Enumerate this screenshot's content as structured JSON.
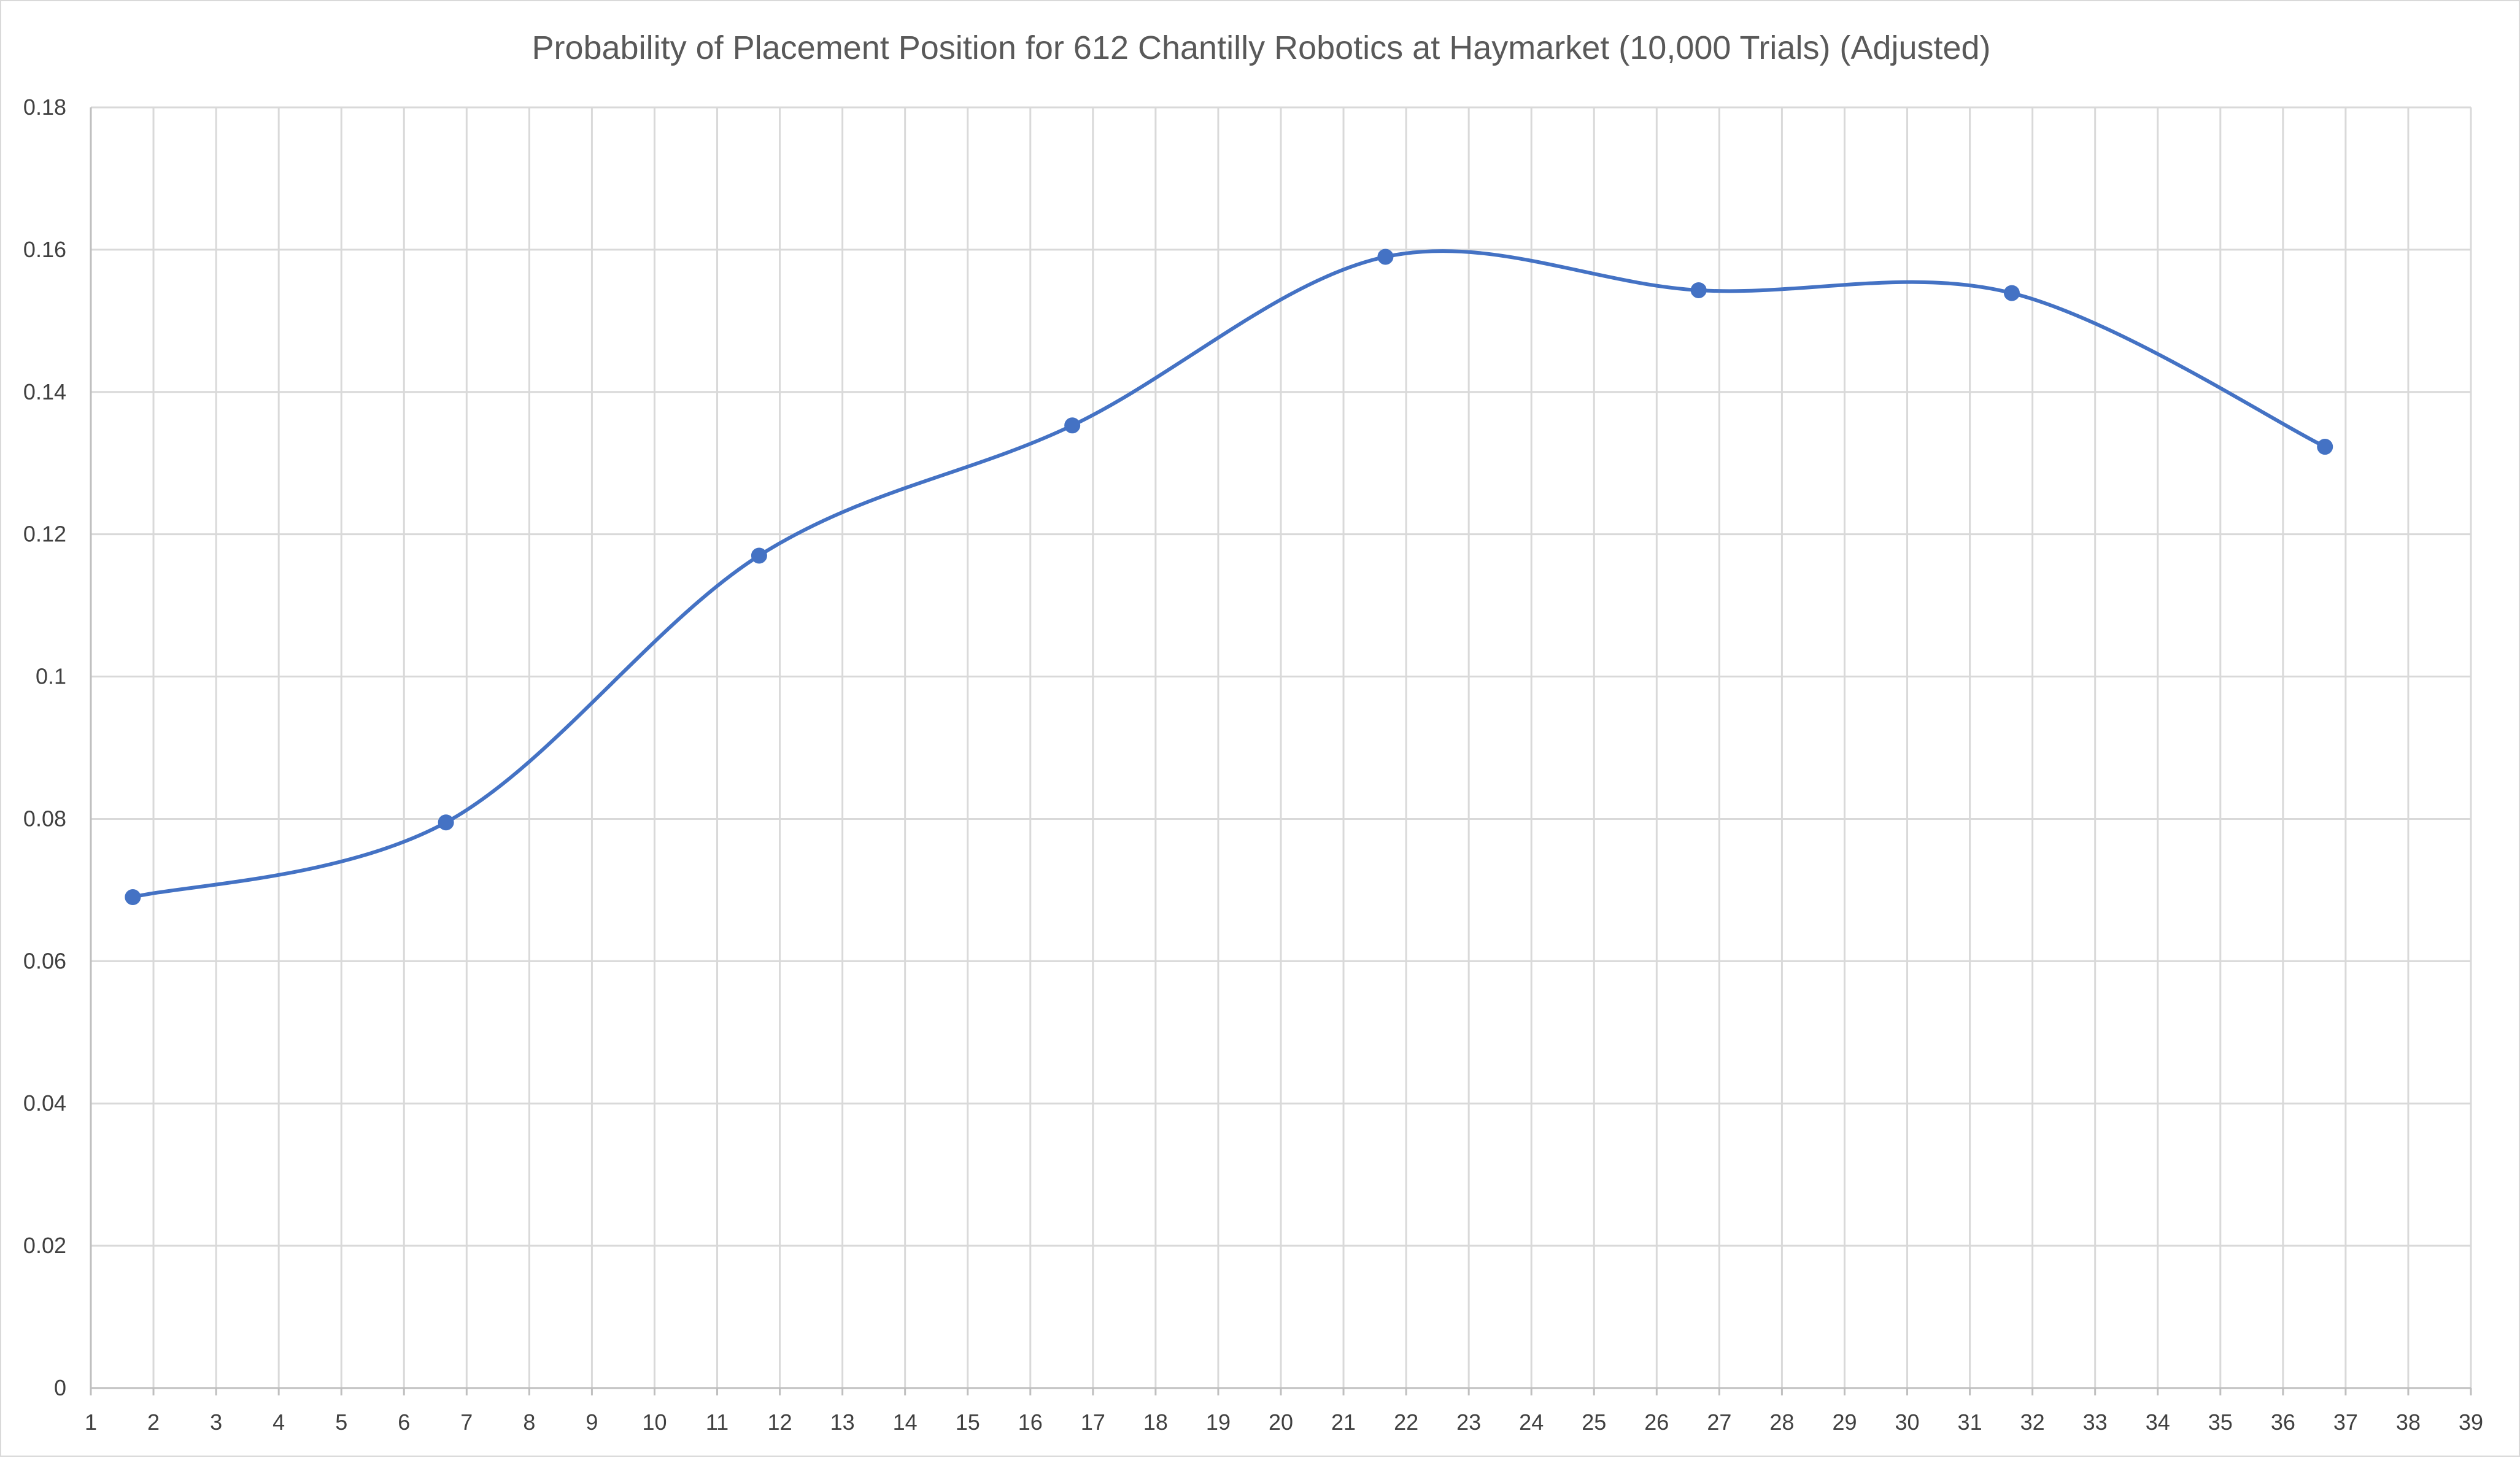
{
  "chart_data": {
    "type": "line",
    "title": "Probability of Placement Position for 612 Chantilly Robotics at Haymarket (10,000 Trials) (Adjusted)",
    "xlabel": "",
    "ylabel": "",
    "x_ticks": [
      "1",
      "2",
      "3",
      "4",
      "5",
      "6",
      "7",
      "8",
      "9",
      "10",
      "11",
      "12",
      "13",
      "14",
      "15",
      "16",
      "17",
      "18",
      "19",
      "20",
      "21",
      "22",
      "23",
      "24",
      "25",
      "26",
      "27",
      "28",
      "29",
      "30",
      "31",
      "32",
      "33",
      "34",
      "35",
      "36",
      "37",
      "38",
      "39"
    ],
    "y_ticks": [
      "0",
      "0.02",
      "0.04",
      "0.06",
      "0.08",
      "0.1",
      "0.12",
      "0.14",
      "0.16",
      "0.18"
    ],
    "xlim": [
      1,
      39
    ],
    "ylim": [
      0,
      0.18
    ],
    "grid": true,
    "legend": "none",
    "smooth": true,
    "series": [
      {
        "color": "#4472c4",
        "x": [
          1.67,
          6.67,
          11.67,
          16.67,
          21.67,
          26.67,
          31.67,
          36.67
        ],
        "y": [
          0.069,
          0.0795,
          0.117,
          0.1353,
          0.159,
          0.1543,
          0.1539,
          0.1323
        ]
      }
    ]
  }
}
